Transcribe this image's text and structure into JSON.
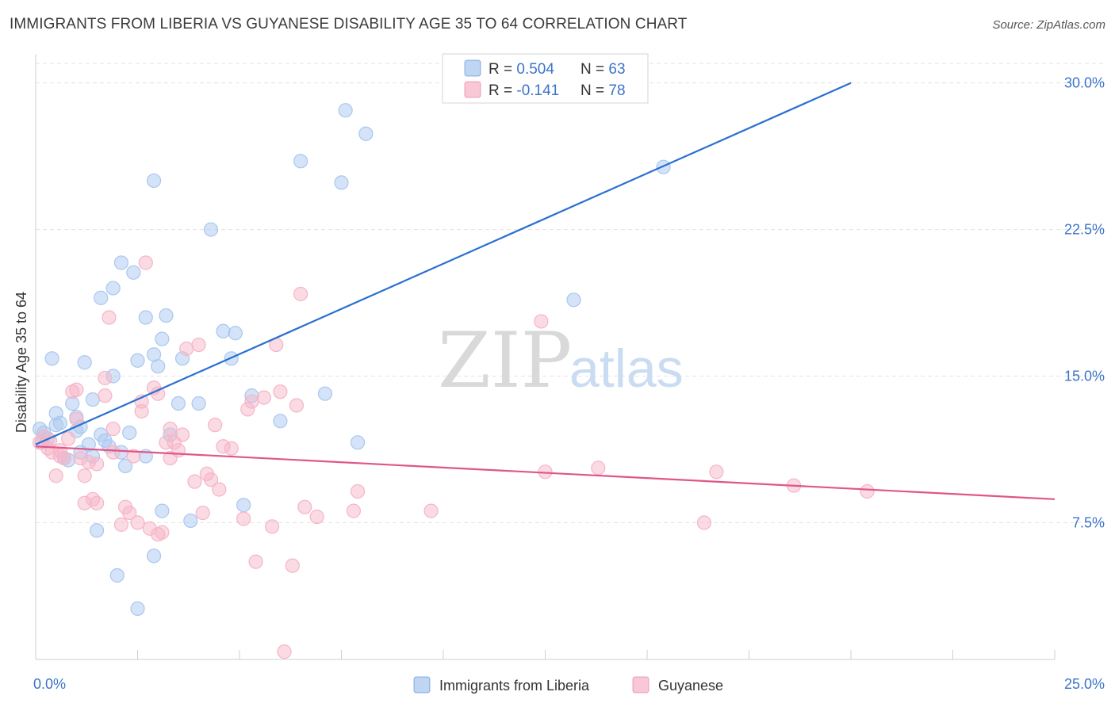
{
  "header": {
    "title": "IMMIGRANTS FROM LIBERIA VS GUYANESE DISABILITY AGE 35 TO 64 CORRELATION CHART",
    "source": "Source: ZipAtlas.com"
  },
  "watermark": {
    "zip": "ZIP",
    "atlas": "atlas"
  },
  "legend": {
    "rows": [
      {
        "r_label": "R = ",
        "r_value": "0.504",
        "n_label": "N = ",
        "n_value": "63"
      },
      {
        "r_label": "R = ",
        "r_value": "-0.141",
        "n_label": "N = ",
        "n_value": "78"
      }
    ]
  },
  "chart_data": {
    "type": "scatter",
    "title": "IMMIGRANTS FROM LIBERIA VS GUYANESE DISABILITY AGE 35 TO 64 CORRELATION CHART",
    "xlabel": "",
    "ylabel": "Disability Age 35 to 64",
    "xlim": [
      0,
      25
    ],
    "ylim": [
      0.5,
      31
    ],
    "x_tick_labels": [
      "0.0%",
      "25.0%"
    ],
    "y_ticks": [
      7.5,
      15.0,
      22.5,
      30.0
    ],
    "y_tick_labels": [
      "7.5%",
      "15.0%",
      "22.5%",
      "30.0%"
    ],
    "grid": true,
    "legend_position": "top-center",
    "series": [
      {
        "name": "Immigrants from Liberia",
        "color": "#a9c8ef",
        "line_color": "#2a6fd0",
        "r": 0.504,
        "n": 63,
        "trend": {
          "x0": 0,
          "y0": 11.5,
          "x1": 20.0,
          "y1": 30.0
        },
        "points": [
          [
            0.1,
            12.3
          ],
          [
            0.2,
            12.1
          ],
          [
            0.3,
            11.8
          ],
          [
            0.15,
            11.6
          ],
          [
            0.4,
            15.9
          ],
          [
            0.5,
            13.1
          ],
          [
            0.6,
            12.6
          ],
          [
            0.7,
            10.8
          ],
          [
            0.8,
            10.7
          ],
          [
            0.9,
            13.6
          ],
          [
            1.0,
            12.2
          ],
          [
            1.0,
            12.9
          ],
          [
            1.1,
            12.4
          ],
          [
            1.1,
            11.1
          ],
          [
            1.2,
            15.7
          ],
          [
            1.3,
            11.5
          ],
          [
            1.4,
            13.8
          ],
          [
            1.4,
            10.9
          ],
          [
            1.6,
            19.0
          ],
          [
            1.6,
            12.0
          ],
          [
            1.7,
            11.7
          ],
          [
            1.8,
            11.4
          ],
          [
            1.9,
            15.0
          ],
          [
            1.9,
            19.5
          ],
          [
            2.1,
            20.8
          ],
          [
            2.1,
            11.1
          ],
          [
            2.2,
            10.4
          ],
          [
            2.3,
            12.1
          ],
          [
            2.4,
            20.3
          ],
          [
            2.5,
            15.8
          ],
          [
            2.7,
            18.0
          ],
          [
            2.7,
            10.9
          ],
          [
            2.9,
            16.1
          ],
          [
            2.9,
            25.0
          ],
          [
            3.0,
            15.5
          ],
          [
            3.1,
            16.9
          ],
          [
            3.2,
            18.1
          ],
          [
            3.3,
            12.0
          ],
          [
            3.5,
            13.6
          ],
          [
            3.6,
            15.9
          ],
          [
            4.0,
            13.6
          ],
          [
            4.3,
            22.5
          ],
          [
            4.6,
            17.3
          ],
          [
            4.8,
            15.9
          ],
          [
            4.9,
            17.2
          ],
          [
            5.3,
            14.0
          ],
          [
            6.0,
            12.7
          ],
          [
            6.5,
            26.0
          ],
          [
            7.1,
            14.1
          ],
          [
            7.5,
            24.9
          ],
          [
            7.6,
            28.6
          ],
          [
            7.9,
            11.6
          ],
          [
            8.1,
            27.4
          ],
          [
            13.2,
            18.9
          ],
          [
            15.4,
            25.7
          ],
          [
            1.5,
            7.1
          ],
          [
            2.0,
            4.8
          ],
          [
            2.5,
            3.1
          ],
          [
            2.9,
            5.8
          ],
          [
            3.1,
            8.1
          ],
          [
            3.8,
            7.6
          ],
          [
            5.1,
            8.4
          ],
          [
            0.5,
            12.5
          ]
        ]
      },
      {
        "name": "Guyanese",
        "color": "#f6b5c8",
        "line_color": "#e0558a",
        "r": -0.141,
        "n": 78,
        "trend": {
          "x0": 0,
          "y0": 11.4,
          "x1": 25.0,
          "y1": 8.7
        },
        "points": [
          [
            0.1,
            11.6
          ],
          [
            0.2,
            11.9
          ],
          [
            0.3,
            11.3
          ],
          [
            0.35,
            11.7
          ],
          [
            0.4,
            11.1
          ],
          [
            0.5,
            9.9
          ],
          [
            0.6,
            11.2
          ],
          [
            0.7,
            10.8
          ],
          [
            0.8,
            11.8
          ],
          [
            0.9,
            14.2
          ],
          [
            1.0,
            12.8
          ],
          [
            1.0,
            14.3
          ],
          [
            1.1,
            10.8
          ],
          [
            1.2,
            9.9
          ],
          [
            1.2,
            8.5
          ],
          [
            1.4,
            8.7
          ],
          [
            1.5,
            10.5
          ],
          [
            1.5,
            8.5
          ],
          [
            1.7,
            14.9
          ],
          [
            1.7,
            14.0
          ],
          [
            1.8,
            18.0
          ],
          [
            1.9,
            12.3
          ],
          [
            1.9,
            11.1
          ],
          [
            2.1,
            7.4
          ],
          [
            2.2,
            8.3
          ],
          [
            2.3,
            8.0
          ],
          [
            2.4,
            10.9
          ],
          [
            2.5,
            7.5
          ],
          [
            2.6,
            13.2
          ],
          [
            2.6,
            13.7
          ],
          [
            2.7,
            20.8
          ],
          [
            2.8,
            7.2
          ],
          [
            2.9,
            14.4
          ],
          [
            3.0,
            14.1
          ],
          [
            3.0,
            6.9
          ],
          [
            3.1,
            7.0
          ],
          [
            3.2,
            11.6
          ],
          [
            3.3,
            10.8
          ],
          [
            3.3,
            12.3
          ],
          [
            3.4,
            11.6
          ],
          [
            3.5,
            11.2
          ],
          [
            3.6,
            12.0
          ],
          [
            3.7,
            16.4
          ],
          [
            3.9,
            9.6
          ],
          [
            4.0,
            16.6
          ],
          [
            4.1,
            8.0
          ],
          [
            4.2,
            10.0
          ],
          [
            4.3,
            9.7
          ],
          [
            4.4,
            12.5
          ],
          [
            4.5,
            9.2
          ],
          [
            4.6,
            11.4
          ],
          [
            4.8,
            11.3
          ],
          [
            5.1,
            7.7
          ],
          [
            5.2,
            13.3
          ],
          [
            5.3,
            13.7
          ],
          [
            5.4,
            5.5
          ],
          [
            5.6,
            13.9
          ],
          [
            5.8,
            7.3
          ],
          [
            5.9,
            16.6
          ],
          [
            6.0,
            14.2
          ],
          [
            6.1,
            0.9
          ],
          [
            6.3,
            5.3
          ],
          [
            6.4,
            13.5
          ],
          [
            6.5,
            19.2
          ],
          [
            6.6,
            8.3
          ],
          [
            6.9,
            7.8
          ],
          [
            7.8,
            8.1
          ],
          [
            7.9,
            9.1
          ],
          [
            9.7,
            8.1
          ],
          [
            12.4,
            17.8
          ],
          [
            12.5,
            10.1
          ],
          [
            13.8,
            10.3
          ],
          [
            16.4,
            7.5
          ],
          [
            16.7,
            10.1
          ],
          [
            18.6,
            9.4
          ],
          [
            20.4,
            9.1
          ],
          [
            0.6,
            10.9
          ],
          [
            1.3,
            10.6
          ]
        ]
      }
    ]
  }
}
